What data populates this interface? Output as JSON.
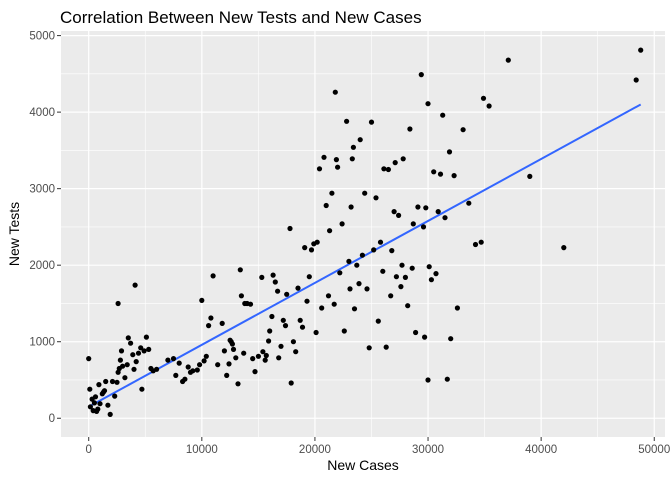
{
  "chart_data": {
    "type": "scatter",
    "title": "Correlation Between New Tests and New Cases",
    "xlabel": "New Cases",
    "ylabel": "New Tests",
    "xlim": [
      -2450,
      50950
    ],
    "ylim": [
      -245,
      5060
    ],
    "x_ticks": [
      0,
      10000,
      20000,
      30000,
      40000,
      50000
    ],
    "x_tick_labels": [
      "0",
      "10000",
      "20000",
      "30000",
      "40000",
      "50000"
    ],
    "y_ticks": [
      0,
      1000,
      2000,
      3000,
      4000,
      5000
    ],
    "y_tick_labels": [
      "0",
      "1000",
      "2000",
      "3000",
      "4000",
      "5000"
    ],
    "grid": true,
    "background": "#ebebeb",
    "grid_color": "#ffffff",
    "point_color": "#000000",
    "trend_color": "#3366ff",
    "trendline": {
      "type": "linear",
      "x": [
        0,
        48800
      ],
      "y": [
        150,
        4100
      ]
    },
    "points": [
      [
        0,
        780
      ],
      [
        100,
        380
      ],
      [
        150,
        150
      ],
      [
        300,
        250
      ],
      [
        400,
        100
      ],
      [
        500,
        200
      ],
      [
        600,
        280
      ],
      [
        700,
        90
      ],
      [
        800,
        120
      ],
      [
        900,
        440
      ],
      [
        1000,
        190
      ],
      [
        1200,
        320
      ],
      [
        1300,
        340
      ],
      [
        1400,
        360
      ],
      [
        1500,
        480
      ],
      [
        1700,
        170
      ],
      [
        1900,
        50
      ],
      [
        2100,
        480
      ],
      [
        2300,
        290
      ],
      [
        2600,
        1500
      ],
      [
        2500,
        470
      ],
      [
        2600,
        600
      ],
      [
        2700,
        650
      ],
      [
        2800,
        760
      ],
      [
        2900,
        880
      ],
      [
        3000,
        680
      ],
      [
        3200,
        530
      ],
      [
        3400,
        700
      ],
      [
        3500,
        1050
      ],
      [
        3700,
        980
      ],
      [
        3900,
        830
      ],
      [
        4000,
        640
      ],
      [
        4100,
        1740
      ],
      [
        4200,
        740
      ],
      [
        4400,
        850
      ],
      [
        4600,
        920
      ],
      [
        4700,
        380
      ],
      [
        4900,
        880
      ],
      [
        5100,
        1060
      ],
      [
        5300,
        900
      ],
      [
        5500,
        650
      ],
      [
        5700,
        620
      ],
      [
        6000,
        640
      ],
      [
        7000,
        760
      ],
      [
        7500,
        780
      ],
      [
        7700,
        560
      ],
      [
        8000,
        720
      ],
      [
        8300,
        480
      ],
      [
        8500,
        510
      ],
      [
        8800,
        670
      ],
      [
        9000,
        600
      ],
      [
        9200,
        620
      ],
      [
        9600,
        630
      ],
      [
        9800,
        700
      ],
      [
        10000,
        1540
      ],
      [
        10200,
        750
      ],
      [
        10400,
        810
      ],
      [
        10600,
        1210
      ],
      [
        10800,
        1310
      ],
      [
        11000,
        1860
      ],
      [
        11400,
        700
      ],
      [
        11800,
        1240
      ],
      [
        12000,
        880
      ],
      [
        12200,
        560
      ],
      [
        12400,
        710
      ],
      [
        12500,
        1020
      ],
      [
        12600,
        1000
      ],
      [
        12700,
        970
      ],
      [
        12800,
        900
      ],
      [
        13000,
        790
      ],
      [
        13200,
        450
      ],
      [
        13400,
        1940
      ],
      [
        13500,
        1600
      ],
      [
        13700,
        850
      ],
      [
        13800,
        1500
      ],
      [
        14000,
        1500
      ],
      [
        14300,
        1490
      ],
      [
        14500,
        780
      ],
      [
        14700,
        610
      ],
      [
        15000,
        810
      ],
      [
        15300,
        1840
      ],
      [
        15400,
        870
      ],
      [
        15600,
        760
      ],
      [
        15700,
        820
      ],
      [
        15900,
        1010
      ],
      [
        16000,
        1140
      ],
      [
        16200,
        1330
      ],
      [
        16300,
        1870
      ],
      [
        16500,
        1780
      ],
      [
        16700,
        1660
      ],
      [
        16800,
        790
      ],
      [
        17000,
        940
      ],
      [
        17200,
        1280
      ],
      [
        17400,
        1210
      ],
      [
        17500,
        1620
      ],
      [
        17800,
        2480
      ],
      [
        17900,
        460
      ],
      [
        18100,
        1000
      ],
      [
        18300,
        870
      ],
      [
        18500,
        1700
      ],
      [
        18700,
        1280
      ],
      [
        18900,
        1190
      ],
      [
        19100,
        2230
      ],
      [
        19300,
        1530
      ],
      [
        19500,
        1850
      ],
      [
        19700,
        2200
      ],
      [
        19900,
        2280
      ],
      [
        20100,
        1120
      ],
      [
        20200,
        2300
      ],
      [
        20400,
        3260
      ],
      [
        20600,
        1440
      ],
      [
        20800,
        3410
      ],
      [
        21000,
        2780
      ],
      [
        21200,
        1600
      ],
      [
        21300,
        2450
      ],
      [
        21500,
        2940
      ],
      [
        21700,
        1490
      ],
      [
        21800,
        4260
      ],
      [
        21900,
        3380
      ],
      [
        22000,
        3280
      ],
      [
        22200,
        1900
      ],
      [
        22400,
        2540
      ],
      [
        22600,
        1140
      ],
      [
        22800,
        3880
      ],
      [
        23000,
        2050
      ],
      [
        23100,
        1690
      ],
      [
        23200,
        2760
      ],
      [
        23400,
        3540
      ],
      [
        23500,
        1430
      ],
      [
        23700,
        2000
      ],
      [
        23900,
        1760
      ],
      [
        24000,
        3640
      ],
      [
        24200,
        2130
      ],
      [
        24400,
        2940
      ],
      [
        24600,
        1690
      ],
      [
        24800,
        920
      ],
      [
        25000,
        3870
      ],
      [
        25200,
        2200
      ],
      [
        25400,
        2880
      ],
      [
        25600,
        1270
      ],
      [
        25800,
        2300
      ],
      [
        26000,
        1920
      ],
      [
        26100,
        3260
      ],
      [
        26300,
        930
      ],
      [
        26500,
        3250
      ],
      [
        26700,
        1600
      ],
      [
        26800,
        2190
      ],
      [
        27000,
        2700
      ],
      [
        27100,
        3340
      ],
      [
        27200,
        1850
      ],
      [
        27400,
        2650
      ],
      [
        27600,
        1720
      ],
      [
        27700,
        2000
      ],
      [
        27800,
        3390
      ],
      [
        28000,
        1840
      ],
      [
        28200,
        1470
      ],
      [
        28400,
        3780
      ],
      [
        28600,
        1960
      ],
      [
        28700,
        2540
      ],
      [
        28900,
        1120
      ],
      [
        29100,
        2760
      ],
      [
        29400,
        4490
      ],
      [
        29600,
        2500
      ],
      [
        29700,
        1060
      ],
      [
        29800,
        2750
      ],
      [
        30000,
        500
      ],
      [
        30100,
        1980
      ],
      [
        30300,
        1810
      ],
      [
        30500,
        3220
      ],
      [
        30700,
        1890
      ],
      [
        30900,
        2700
      ],
      [
        31100,
        3190
      ],
      [
        31300,
        3960
      ],
      [
        31500,
        2620
      ],
      [
        31700,
        510
      ],
      [
        31900,
        3480
      ],
      [
        32000,
        1040
      ],
      [
        32300,
        3170
      ],
      [
        32600,
        1440
      ],
      [
        33100,
        3770
      ],
      [
        33600,
        2810
      ],
      [
        34200,
        2270
      ],
      [
        34700,
        2300
      ],
      [
        34900,
        4180
      ],
      [
        35400,
        4080
      ],
      [
        37100,
        4680
      ],
      [
        39000,
        3160
      ],
      [
        42000,
        2230
      ],
      [
        48400,
        4420
      ],
      [
        48800,
        4810
      ],
      [
        30000,
        4110
      ],
      [
        23300,
        3390
      ]
    ]
  }
}
